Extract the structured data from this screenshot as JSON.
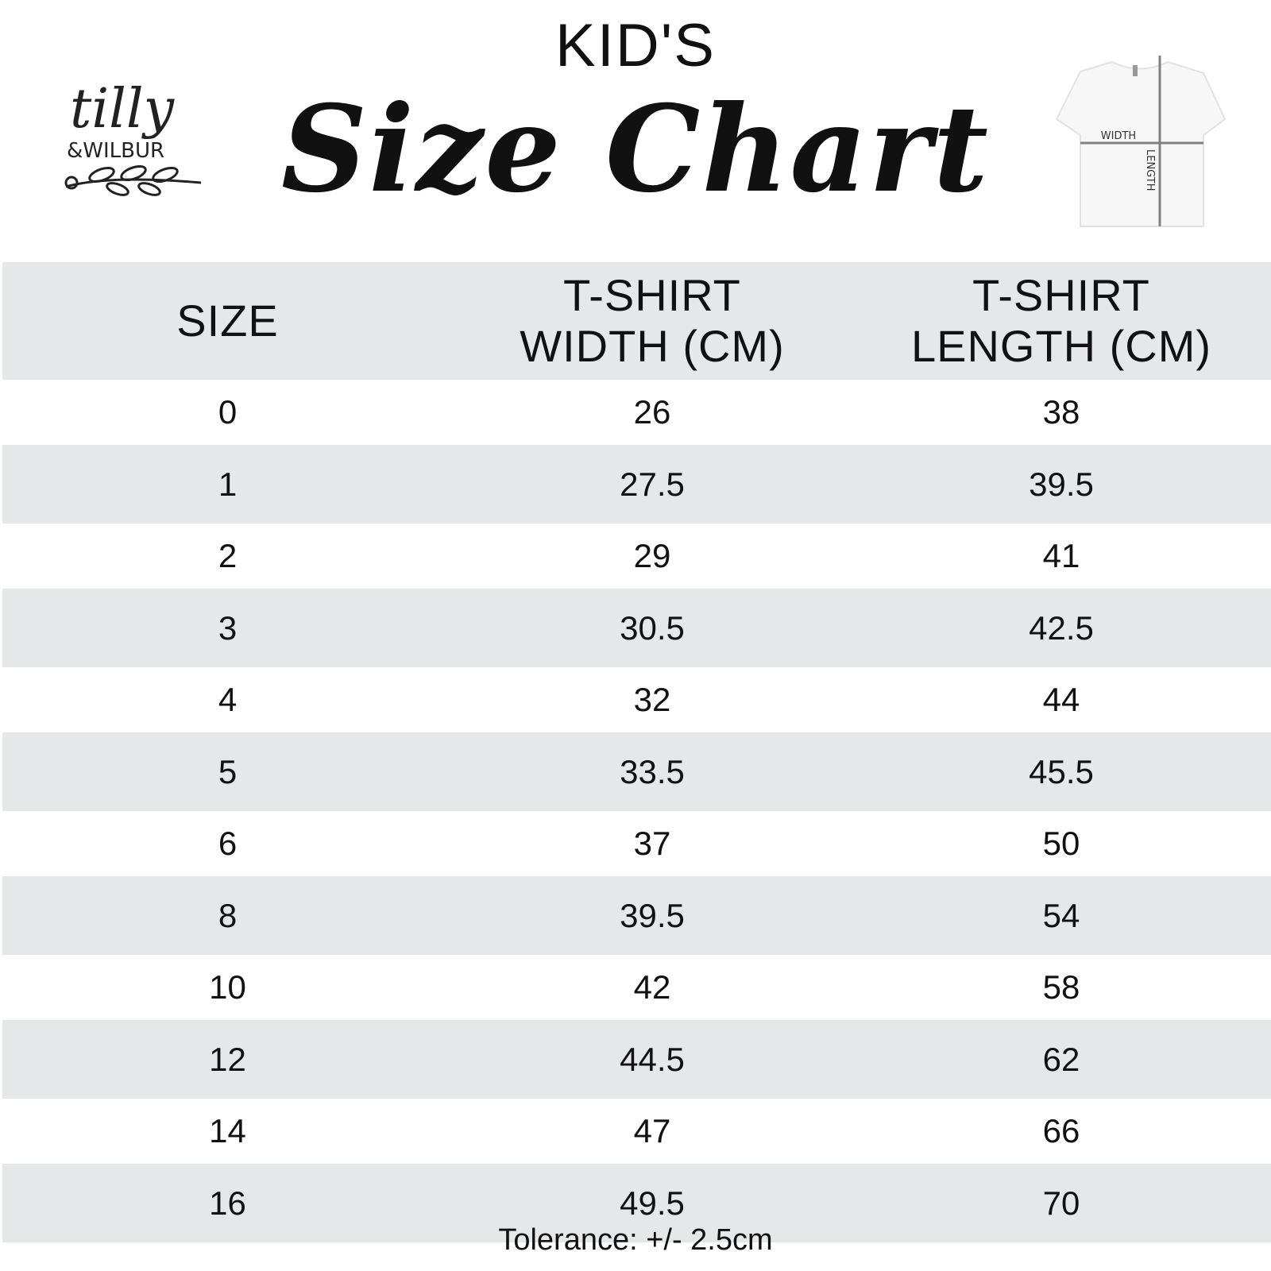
{
  "brand": {
    "logo_text_1": "tilly",
    "logo_text_2": "&WILBUR"
  },
  "header": {
    "kicker": "KID'S",
    "title": "Size Chart"
  },
  "diagram": {
    "width_label": "WIDTH",
    "length_label": "LENGTH"
  },
  "table": {
    "columns": [
      {
        "line1": "SIZE",
        "line2": ""
      },
      {
        "line1": "T-SHIRT",
        "line2": "WIDTH (CM)"
      },
      {
        "line1": "T-SHIRT",
        "line2": "LENGTH (CM)"
      }
    ],
    "rows": [
      [
        "0",
        "26",
        "38"
      ],
      [
        "1",
        "27.5",
        "39.5"
      ],
      [
        "2",
        "29",
        "41"
      ],
      [
        "3",
        "30.5",
        "42.5"
      ],
      [
        "4",
        "32",
        "44"
      ],
      [
        "5",
        "33.5",
        "45.5"
      ],
      [
        "6",
        "37",
        "50"
      ],
      [
        "8",
        "39.5",
        "54"
      ],
      [
        "10",
        "42",
        "58"
      ],
      [
        "12",
        "44.5",
        "62"
      ],
      [
        "14",
        "47",
        "66"
      ],
      [
        "16",
        "49.5",
        "70"
      ]
    ]
  },
  "footer": {
    "tolerance": "Tolerance: +/- 2.5cm"
  },
  "colors": {
    "band": "#e6e7e9",
    "text": "#111111"
  }
}
